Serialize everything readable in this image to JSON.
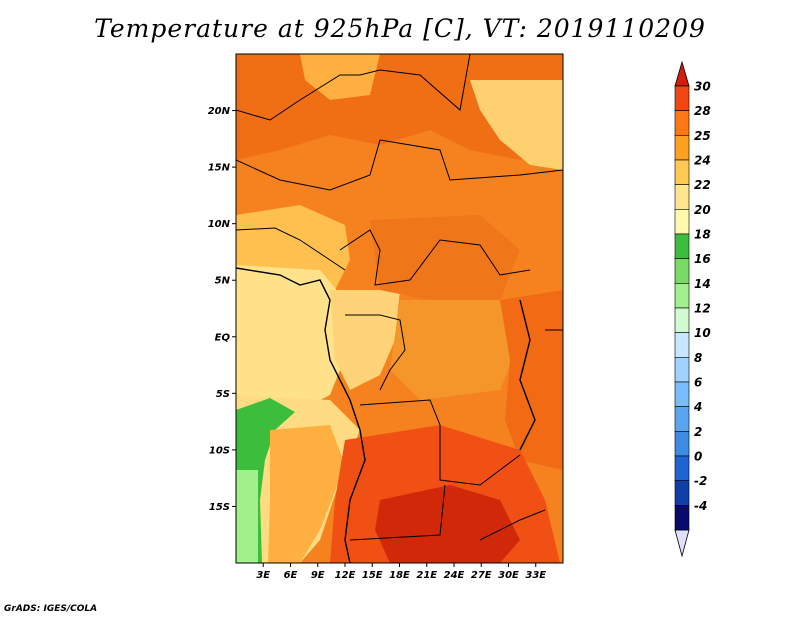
{
  "title": "Temperature at 925hPa [C], VT: 2019110209",
  "credit": "GrADS: IGES/COLA",
  "map": {
    "lon_range": [
      0,
      36
    ],
    "lat_range": [
      -20,
      25
    ],
    "lon_ticks": [
      {
        "value": 3,
        "label": "3E"
      },
      {
        "value": 6,
        "label": "6E"
      },
      {
        "value": 9,
        "label": "9E"
      },
      {
        "value": 12,
        "label": "12E"
      },
      {
        "value": 15,
        "label": "15E"
      },
      {
        "value": 18,
        "label": "18E"
      },
      {
        "value": 21,
        "label": "21E"
      },
      {
        "value": 24,
        "label": "24E"
      },
      {
        "value": 27,
        "label": "27E"
      },
      {
        "value": 30,
        "label": "30E"
      },
      {
        "value": 33,
        "label": "33E"
      }
    ],
    "lat_ticks": [
      {
        "value": 20,
        "label": "20N"
      },
      {
        "value": 15,
        "label": "15N"
      },
      {
        "value": 10,
        "label": "10N"
      },
      {
        "value": 5,
        "label": "5N"
      },
      {
        "value": 0,
        "label": "EQ"
      },
      {
        "value": -5,
        "label": "5S"
      },
      {
        "value": -10,
        "label": "10S"
      },
      {
        "value": -15,
        "label": "15S"
      }
    ]
  },
  "colorbar": {
    "levels": [
      "-4",
      "-2",
      "0",
      "2",
      "4",
      "6",
      "8",
      "10",
      "12",
      "14",
      "16",
      "18",
      "20",
      "22",
      "24",
      "25",
      "28",
      "30"
    ],
    "colors": [
      "#0a0a6e",
      "#0f3fa8",
      "#1e64d2",
      "#3c8ce6",
      "#5aa5f0",
      "#78beff",
      "#a0d2ff",
      "#c8e6ff",
      "#d2fad2",
      "#a0f08c",
      "#78dc64",
      "#3cbe3c",
      "#fffaaa",
      "#ffe68c",
      "#ffc850",
      "#ffa01e",
      "#ff7814",
      "#f04614",
      "#d21e0a"
    ],
    "under_color": "#e0e0f8",
    "over_color": "#d21e0a"
  }
}
